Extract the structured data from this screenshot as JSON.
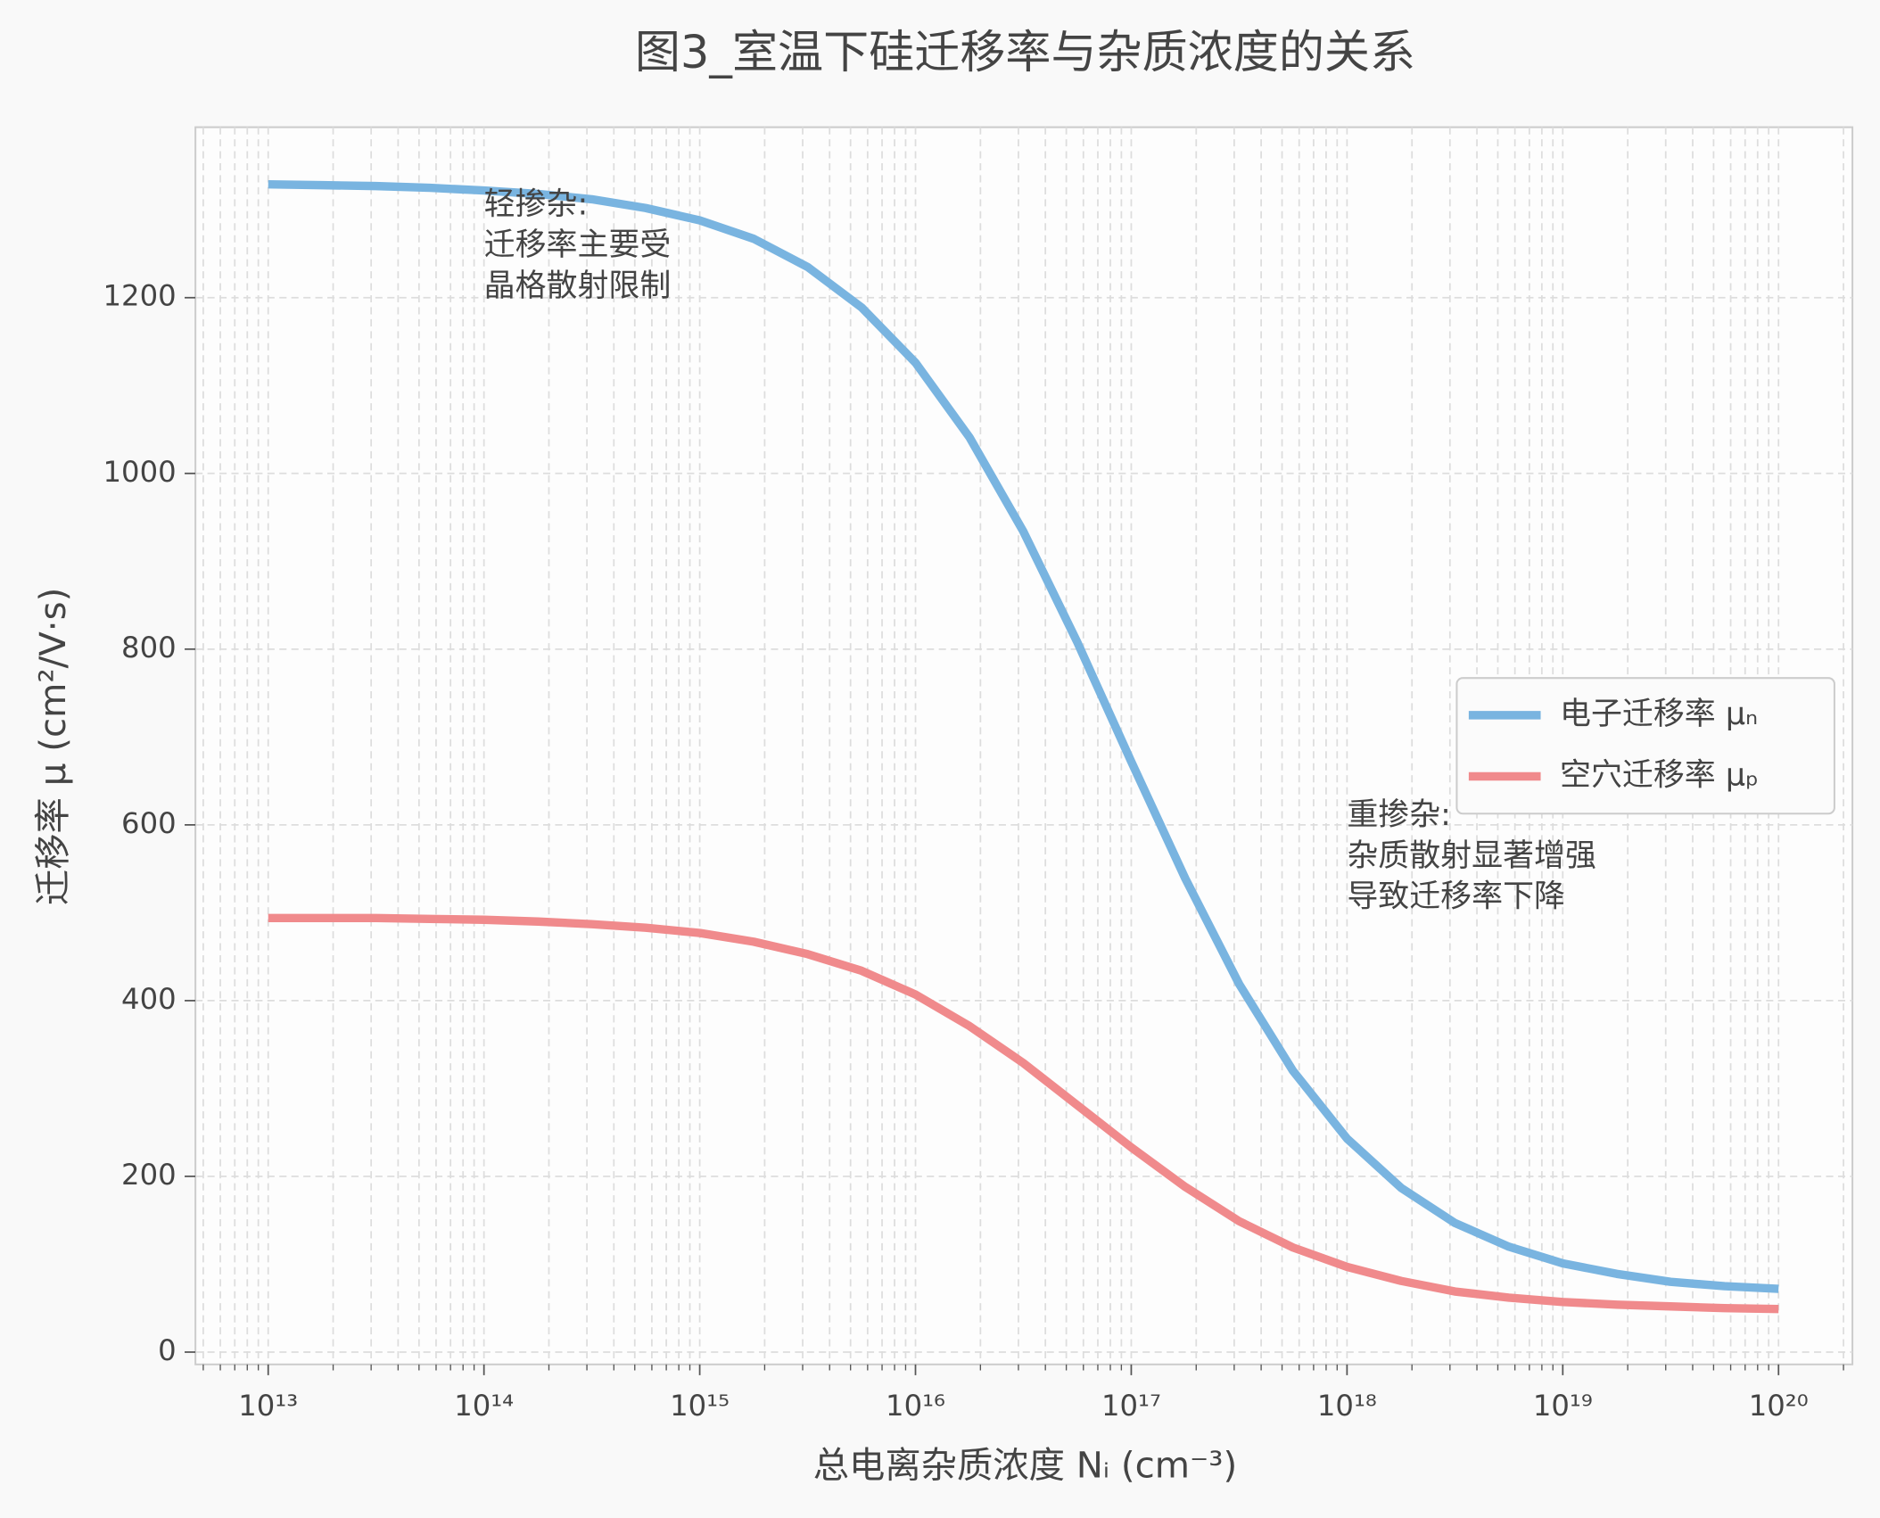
{
  "chart_data": {
    "type": "line",
    "title": "图3_室温下硅迁移率与杂质浓度的关系",
    "x_label": "总电离杂质浓度 Nᵢ (cm⁻³)",
    "y_label": "迁移率 μ (cm²/V·s)",
    "x": [
      10000000000000.0,
      17800000000000.0,
      31600000000000.0,
      56200000000000.0,
      100000000000000.0,
      178000000000000.0,
      316000000000000.0,
      562000000000000.0,
      1000000000000000.0,
      1780000000000000.0,
      3160000000000000.0,
      5620000000000000.0,
      1e+16,
      1.78e+16,
      3.16e+16,
      5.62e+16,
      1e+17,
      1.78e+17,
      3.16e+17,
      5.62e+17,
      1e+18,
      1.78e+18,
      3.16e+18,
      5.62e+18,
      1e+19,
      1.78e+19,
      3.16e+19,
      5.62e+19,
      1e+20
    ],
    "series": [
      {
        "name": "电子迁移率 μₙ",
        "color": "#79b4e0",
        "values": [
          1329,
          1328,
          1327,
          1325,
          1322,
          1318,
          1312,
          1302,
          1288,
          1267,
          1235,
          1189,
          1126,
          1041,
          934,
          808,
          672,
          539,
          419,
          320,
          243,
          187,
          147,
          120,
          101,
          89,
          80,
          75,
          72
        ]
      },
      {
        "name": "空穴迁移率 μₚ",
        "color": "#f08a8c",
        "values": [
          494,
          494,
          494,
          493,
          492,
          490,
          487,
          483,
          477,
          467,
          453,
          434,
          407,
          371,
          329,
          281,
          233,
          188,
          149,
          119,
          97,
          81,
          69,
          62,
          57,
          54,
          52,
          50,
          49
        ]
      }
    ],
    "annotations": [
      {
        "x": 100000000000000.0,
        "y": 1305,
        "lines": [
          "轻掺杂:",
          "迁移率主要受",
          "晶格散射限制"
        ]
      },
      {
        "x": 1e+18,
        "y": 610,
        "lines": [
          "重掺杂:",
          "杂质散射显著增强",
          "导致迁移率下降"
        ]
      }
    ],
    "x_scale": "log",
    "xlim": [
      4600000000000.0,
      2.2e+20
    ],
    "xticks": [
      {
        "value": 10000000000000.0,
        "label": "10¹³"
      },
      {
        "value": 100000000000000.0,
        "label": "10¹⁴"
      },
      {
        "value": 1000000000000000.0,
        "label": "10¹⁵"
      },
      {
        "value": 1e+16,
        "label": "10¹⁶"
      },
      {
        "value": 1e+17,
        "label": "10¹⁷"
      },
      {
        "value": 1e+18,
        "label": "10¹⁸"
      },
      {
        "value": 1e+19,
        "label": "10¹⁹"
      },
      {
        "value": 1e+20,
        "label": "10²⁰"
      }
    ],
    "xminorticks": [
      5000000000000.0,
      6000000000000.0,
      7000000000000.0,
      8000000000000.0,
      9000000000000.0,
      20000000000000.0,
      30000000000000.0,
      40000000000000.0,
      50000000000000.0,
      60000000000000.0,
      70000000000000.0,
      80000000000000.0,
      90000000000000.0,
      200000000000000.0,
      300000000000000.0,
      400000000000000.0,
      500000000000000.0,
      600000000000000.0,
      700000000000000.0,
      800000000000000.0,
      900000000000000.0,
      2000000000000000.0,
      3000000000000000.0,
      4000000000000000.0,
      5000000000000000.0,
      6000000000000000.0,
      7000000000000000.0,
      8000000000000000.0,
      9000000000000000.0,
      2e+16,
      3e+16,
      4e+16,
      5e+16,
      6e+16,
      7e+16,
      8e+16,
      9e+16,
      2e+17,
      3e+17,
      4e+17,
      5e+17,
      6e+17,
      7e+17,
      8e+17,
      9e+17,
      2e+18,
      3e+18,
      4e+18,
      5e+18,
      6e+18,
      7e+18,
      8e+18,
      9e+18,
      2e+19,
      3e+19,
      4e+19,
      5e+19,
      6e+19,
      7e+19,
      8e+19,
      9e+19,
      2e+20
    ],
    "ylim": [
      -14,
      1394
    ],
    "yticks": [
      0,
      200,
      400,
      600,
      800,
      1000,
      1200
    ],
    "grid": true,
    "legend": "right"
  }
}
